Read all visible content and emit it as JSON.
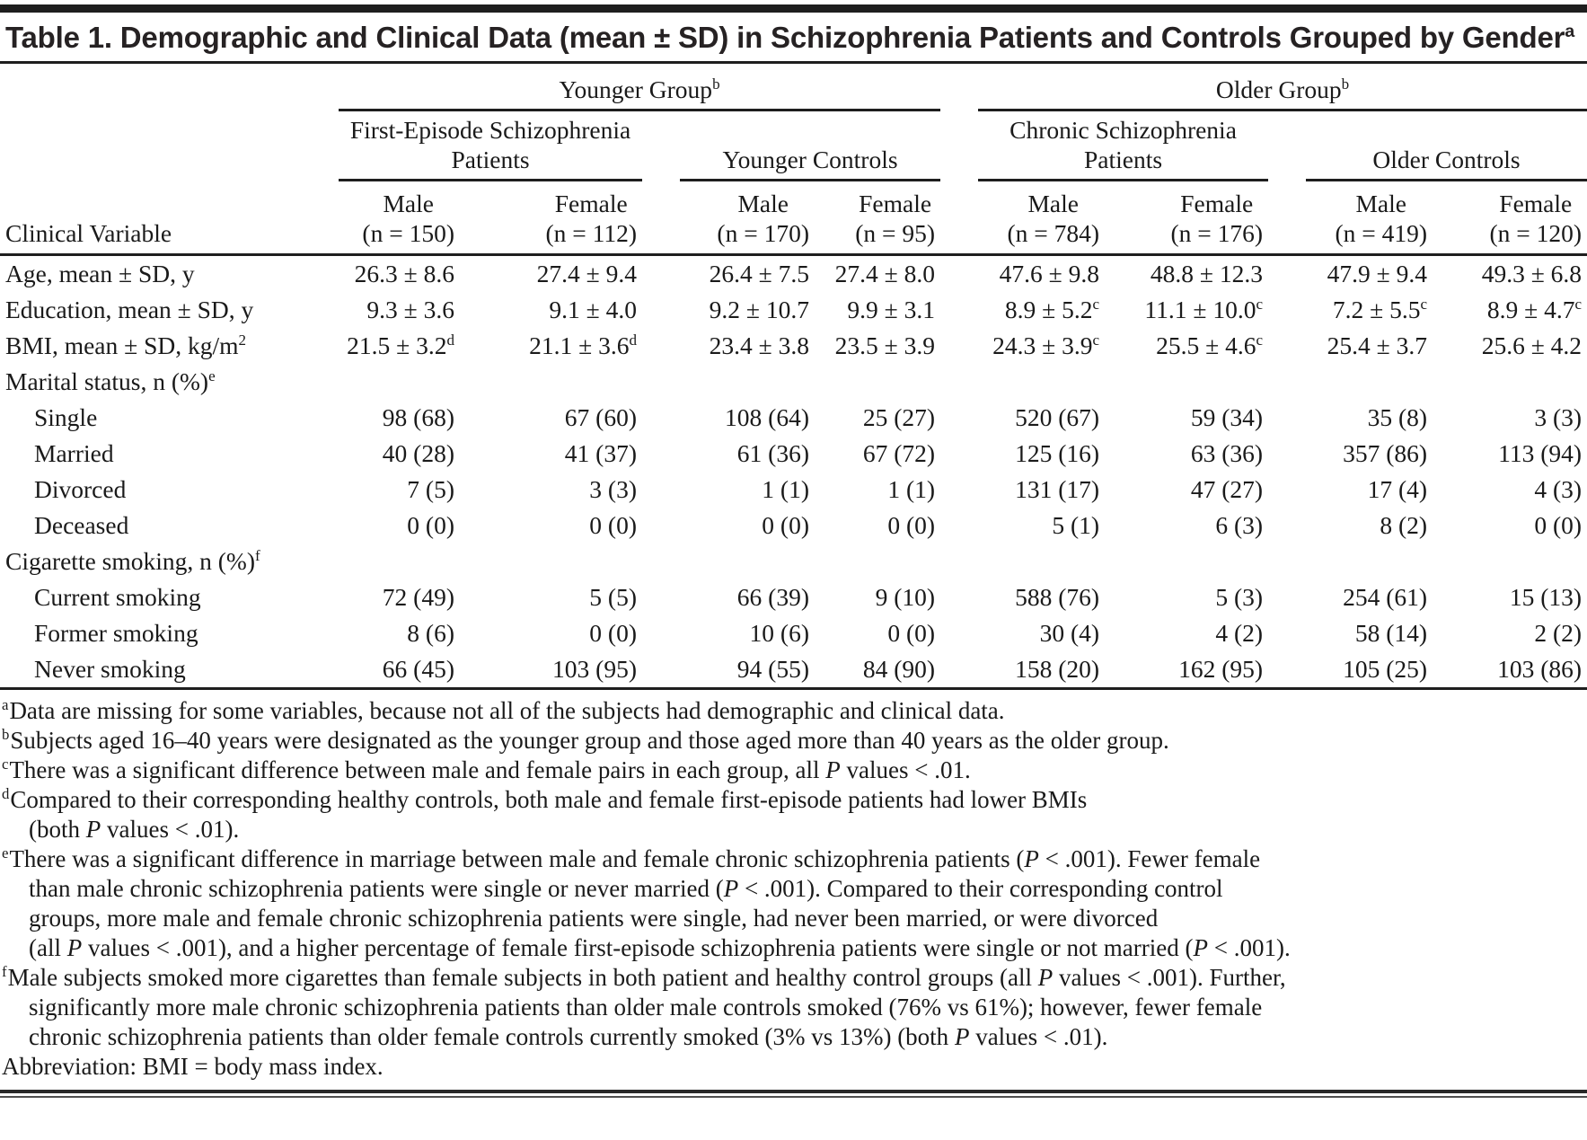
{
  "title": {
    "text": "Table 1. Demographic and Clinical Data (mean ± SD) in Schizophrenia Patients and Controls Grouped by Gender",
    "sup": "a"
  },
  "table": {
    "corner_label": "Clinical Variable",
    "groups": [
      {
        "label": "Younger Group",
        "sup": "b"
      },
      {
        "label": "Older Group",
        "sup": "b"
      }
    ],
    "subgroups": [
      "First-Episode Schizophrenia Patients",
      "Younger Controls",
      "Chronic Schizophrenia Patients",
      "Older Controls"
    ],
    "columns": [
      {
        "sex": "Male",
        "n": "(n = 150)"
      },
      {
        "sex": "Female",
        "n": "(n = 112)"
      },
      {
        "sex": "Male",
        "n": "(n = 170)"
      },
      {
        "sex": "Female",
        "n": "(n = 95)"
      },
      {
        "sex": "Male",
        "n": "(n = 784)"
      },
      {
        "sex": "Female",
        "n": "(n = 176)"
      },
      {
        "sex": "Male",
        "n": "(n = 419)"
      },
      {
        "sex": "Female",
        "n": "(n = 120)"
      }
    ],
    "rows": [
      {
        "label": "Age, mean ± SD, y",
        "indent": 0,
        "values": [
          "26.3 ± 8.6",
          "27.4 ± 9.4",
          "26.4 ± 7.5",
          "27.4 ± 8.0",
          "47.6 ± 9.8",
          "48.8 ± 12.3",
          "47.9 ± 9.4",
          "49.3 ± 6.8"
        ]
      },
      {
        "label": "Education, mean ± SD, y",
        "indent": 0,
        "values": [
          "9.3 ± 3.6",
          "9.1 ± 4.0",
          "9.2 ± 10.7",
          "9.9 ± 3.1",
          "8.9 ± 5.2^c",
          "11.1 ± 10.0^c",
          "7.2 ± 5.5^c",
          "8.9 ± 4.7^c"
        ]
      },
      {
        "label": "BMI, mean ± SD, kg/m^2",
        "indent": 0,
        "values": [
          "21.5 ± 3.2^d",
          "21.1 ± 3.6^d",
          "23.4 ± 3.8",
          "23.5 ± 3.9",
          "24.3 ± 3.9^c",
          "25.5 ± 4.6^c",
          "25.4 ± 3.7",
          "25.6 ± 4.2"
        ]
      },
      {
        "label": "Marital status, n (%)^e",
        "indent": 0,
        "values": [
          "",
          "",
          "",
          "",
          "",
          "",
          "",
          ""
        ]
      },
      {
        "label": "Single",
        "indent": 1,
        "values": [
          "98 (68)",
          "67 (60)",
          "108 (64)",
          "25 (27)",
          "520 (67)",
          "59 (34)",
          "35 (8)",
          "3 (3)"
        ]
      },
      {
        "label": "Married",
        "indent": 1,
        "values": [
          "40 (28)",
          "41 (37)",
          "61 (36)",
          "67 (72)",
          "125 (16)",
          "63 (36)",
          "357 (86)",
          "113 (94)"
        ]
      },
      {
        "label": "Divorced",
        "indent": 1,
        "values": [
          "7 (5)",
          "3 (3)",
          "1 (1)",
          "1 (1)",
          "131 (17)",
          "47 (27)",
          "17 (4)",
          "4 (3)"
        ]
      },
      {
        "label": "Deceased",
        "indent": 1,
        "values": [
          "0 (0)",
          "0 (0)",
          "0 (0)",
          "0 (0)",
          "5 (1)",
          "6 (3)",
          "8 (2)",
          "0 (0)"
        ]
      },
      {
        "label": "Cigarette smoking, n (%)^f",
        "indent": 0,
        "values": [
          "",
          "",
          "",
          "",
          "",
          "",
          "",
          ""
        ]
      },
      {
        "label": "Current smoking",
        "indent": 1,
        "values": [
          "72 (49)",
          "5 (5)",
          "66 (39)",
          "9 (10)",
          "588 (76)",
          "5 (3)",
          "254 (61)",
          "15 (13)"
        ]
      },
      {
        "label": "Former smoking",
        "indent": 1,
        "values": [
          "8 (6)",
          "0 (0)",
          "10 (6)",
          "0 (0)",
          "30 (4)",
          "4 (2)",
          "58 (14)",
          "2 (2)"
        ]
      },
      {
        "label": "Never smoking",
        "indent": 1,
        "values": [
          "66 (45)",
          "103 (95)",
          "94 (55)",
          "84 (90)",
          "158 (20)",
          "162 (95)",
          "105 (25)",
          "103 (86)"
        ]
      }
    ]
  },
  "footnotes": [
    {
      "sup": "a",
      "lines": [
        "Data are missing for some variables, because not all of the subjects had demographic and clinical data."
      ]
    },
    {
      "sup": "b",
      "lines": [
        "Subjects aged 16–40 years were designated as the younger group and those aged more than 40 years as the older group."
      ]
    },
    {
      "sup": "c",
      "lines": [
        "There was a significant difference between male and female pairs in each group, all *P* values < .01."
      ]
    },
    {
      "sup": "d",
      "lines": [
        "Compared to their corresponding healthy controls, both male and female first-episode patients had lower BMIs",
        "(both *P* values < .01)."
      ]
    },
    {
      "sup": "e",
      "lines": [
        "There was a significant difference in marriage between male and female chronic schizophrenia patients (*P* < .001). Fewer female",
        "than male chronic schizophrenia patients were single or never married (*P* < .001). Compared to their corresponding control",
        "groups, more male and female chronic schizophrenia patients were single, had never been married, or were divorced",
        "(all *P* values < .001), and a higher percentage of female first-episode schizophrenia patients were single or not married (*P* < .001)."
      ]
    },
    {
      "sup": "f",
      "lines": [
        "Male subjects smoked more cigarettes than female subjects in both patient and healthy control groups (all *P* values < .001). Further,",
        "significantly more male chronic schizophrenia patients than older male controls smoked (76% vs 61%); however, fewer female",
        "chronic schizophrenia patients than older female controls currently smoked (3% vs 13%) (both *P* values < .01)."
      ]
    },
    {
      "sup": "",
      "lines": [
        "Abbreviation: BMI = body mass index."
      ]
    }
  ]
}
